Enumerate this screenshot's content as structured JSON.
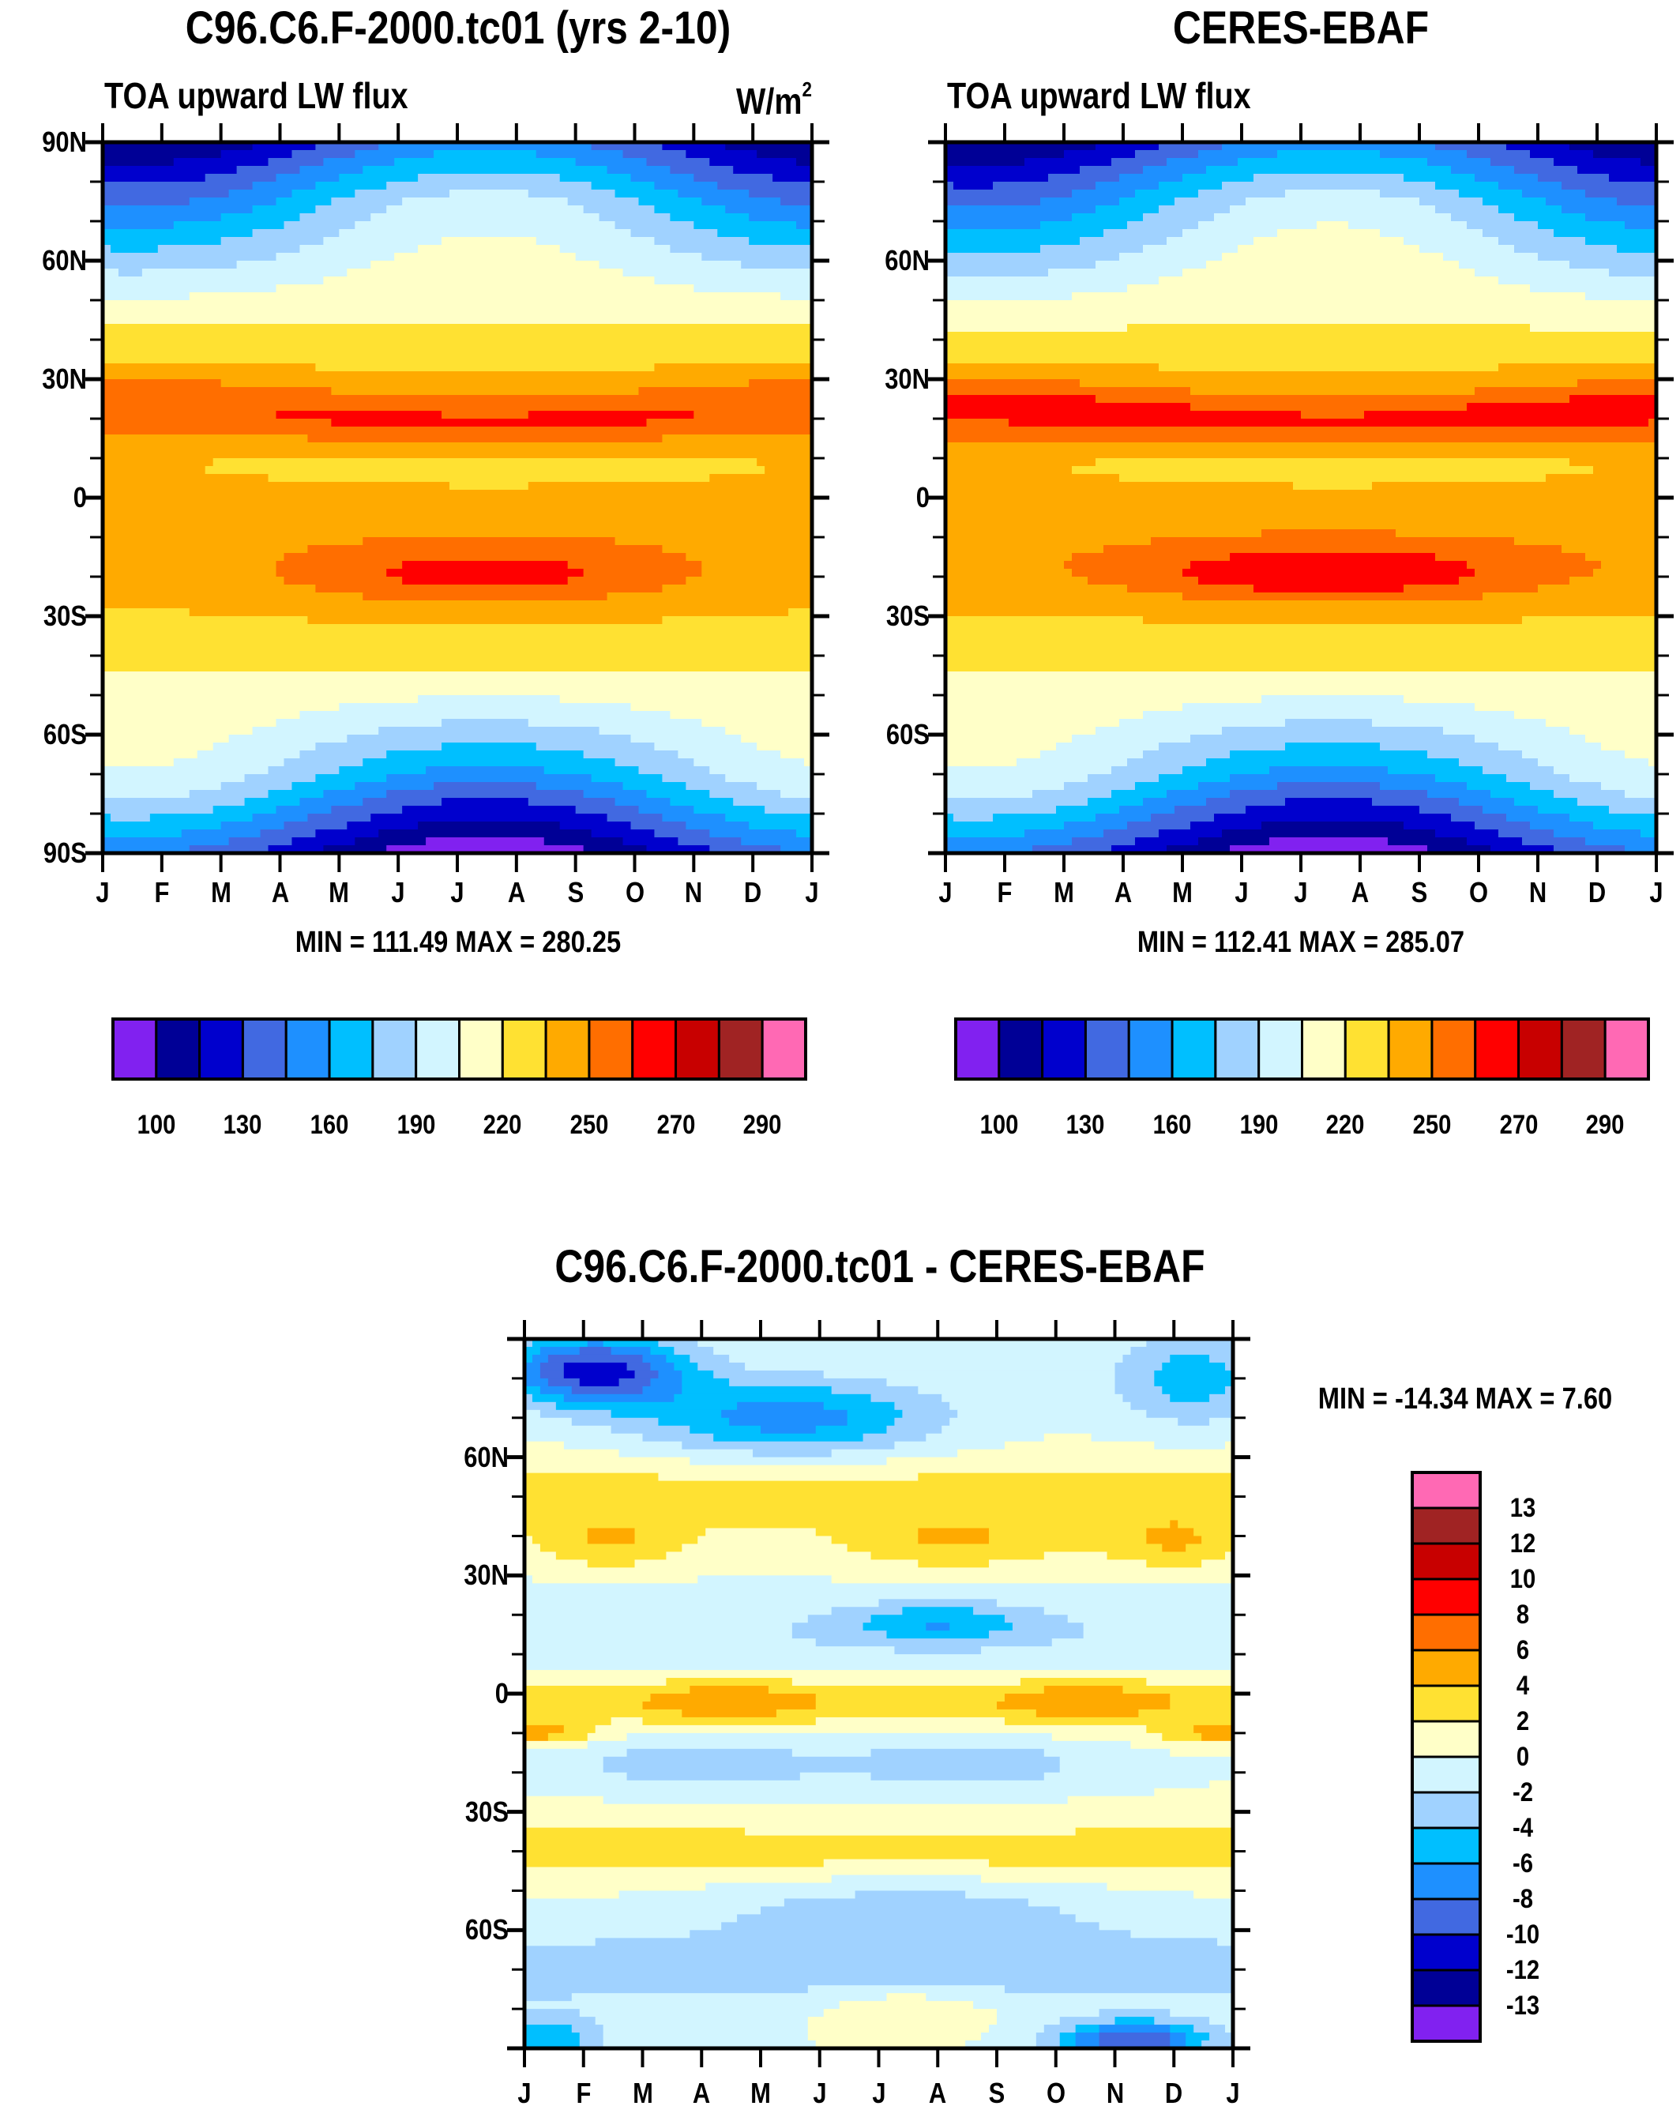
{
  "units": "W/m",
  "units_sup": "2",
  "months": [
    "J",
    "F",
    "M",
    "A",
    "M",
    "J",
    "J",
    "A",
    "S",
    "O",
    "N",
    "D",
    "J"
  ],
  "lat_labels_full": [
    "90N",
    "60N",
    "30N",
    "0",
    "30S",
    "60S",
    "90S"
  ],
  "lat_labels_partial": [
    "60N",
    "30N",
    "0",
    "30S",
    "60S"
  ],
  "abs_colors": [
    "#8121f0",
    "#000096",
    "#0000cd",
    "#4169e1",
    "#1e90ff",
    "#00bfff",
    "#a0d2ff",
    "#d2f5ff",
    "#ffffc8",
    "#ffe132",
    "#ffaa00",
    "#ff6e00",
    "#ff0000",
    "#c80000",
    "#a02323",
    "#ff69b4"
  ],
  "diff_colors": [
    "#8121f0",
    "#000096",
    "#0000cd",
    "#4169e1",
    "#1e90ff",
    "#00bfff",
    "#a0d2ff",
    "#d2f5ff",
    "#ffffc8",
    "#ffe132",
    "#ffaa00",
    "#ff6e00",
    "#ff0000",
    "#c80000",
    "#a02323",
    "#ff69b4"
  ],
  "chart_data": [
    {
      "type": "heatmap",
      "title": "C96.C6.F-2000.tc01 (yrs 2-10)",
      "subtitle": "TOA upward LW flux",
      "units": "W/m2",
      "xlabel": "",
      "ylabel": "",
      "x_ticks": [
        "J",
        "F",
        "M",
        "A",
        "M",
        "J",
        "J",
        "A",
        "S",
        "O",
        "N",
        "D",
        "J"
      ],
      "y_ticks": [
        "90N",
        "60N",
        "30N",
        "0",
        "30S",
        "60S",
        "90S"
      ],
      "ylim": [
        -90,
        90
      ],
      "contour_levels": [
        100,
        115,
        130,
        145,
        160,
        175,
        190,
        205,
        220,
        235,
        250,
        260,
        270,
        280,
        290
      ],
      "colorbar_labels": [
        "100",
        "130",
        "160",
        "190",
        "220",
        "250",
        "270",
        "290"
      ],
      "min_label": "MIN = 111.49 MAX = 280.25",
      "min": 111.49,
      "max": 280.25,
      "features": [
        {
          "region": "20N-30N all year",
          "approx_value": 270
        },
        {
          "region": "15S-25S Jun-Sep",
          "approx_value": 280
        },
        {
          "region": "Antarctic Jul-Aug",
          "approx_value": 115
        },
        {
          "region": "Arctic Jan-Feb",
          "approx_value": 165
        }
      ]
    },
    {
      "type": "heatmap",
      "title": "CERES-EBAF",
      "subtitle": "TOA upward LW flux",
      "x_ticks": [
        "J",
        "F",
        "M",
        "A",
        "M",
        "J",
        "J",
        "A",
        "S",
        "O",
        "N",
        "D",
        "J"
      ],
      "y_ticks": [
        "60N",
        "30N",
        "0",
        "30S",
        "60S"
      ],
      "ylim": [
        -90,
        90
      ],
      "contour_levels": [
        100,
        115,
        130,
        145,
        160,
        175,
        190,
        205,
        220,
        235,
        250,
        260,
        270,
        280,
        290
      ],
      "colorbar_labels": [
        "100",
        "130",
        "160",
        "190",
        "220",
        "250",
        "270",
        "290"
      ],
      "min_label": "MIN = 112.41 MAX = 285.07",
      "min": 112.41,
      "max": 285.07,
      "features": [
        {
          "region": "15N-25N Jan-Feb",
          "approx_value": 282
        },
        {
          "region": "15S-25S Jun-Sep",
          "approx_value": 282
        },
        {
          "region": "Antarctic Jul-Aug",
          "approx_value": 115
        }
      ]
    },
    {
      "type": "heatmap",
      "title": "C96.C6.F-2000.tc01 - CERES-EBAF",
      "x_ticks": [
        "J",
        "F",
        "M",
        "A",
        "M",
        "J",
        "J",
        "A",
        "S",
        "O",
        "N",
        "D",
        "J"
      ],
      "y_ticks": [
        "60N",
        "30N",
        "0",
        "30S",
        "60S"
      ],
      "ylim": [
        -90,
        90
      ],
      "contour_levels": [
        -13,
        -12,
        -10,
        -8,
        -6,
        -4,
        -2,
        0,
        2,
        4,
        6,
        8,
        10,
        12,
        13
      ],
      "colorbar_labels": [
        "13",
        "12",
        "10",
        "8",
        "6",
        "4",
        "2",
        "0",
        "-2",
        "-4",
        "-6",
        "-8",
        "-10",
        "-12",
        "-13"
      ],
      "min_label": "MIN = -14.34 MAX =   7.60",
      "min": -14.34,
      "max": 7.6,
      "features": [
        {
          "region": "Arctic Jan-Mar",
          "approx_value": -13
        },
        {
          "region": "Antarctic Nov-Dec",
          "approx_value": -14
        },
        {
          "region": "35N-45N Jul",
          "approx_value": 6
        },
        {
          "region": "5N Oct",
          "approx_value": 6
        },
        {
          "region": "0-5N Apr",
          "approx_value": 6
        }
      ]
    }
  ]
}
